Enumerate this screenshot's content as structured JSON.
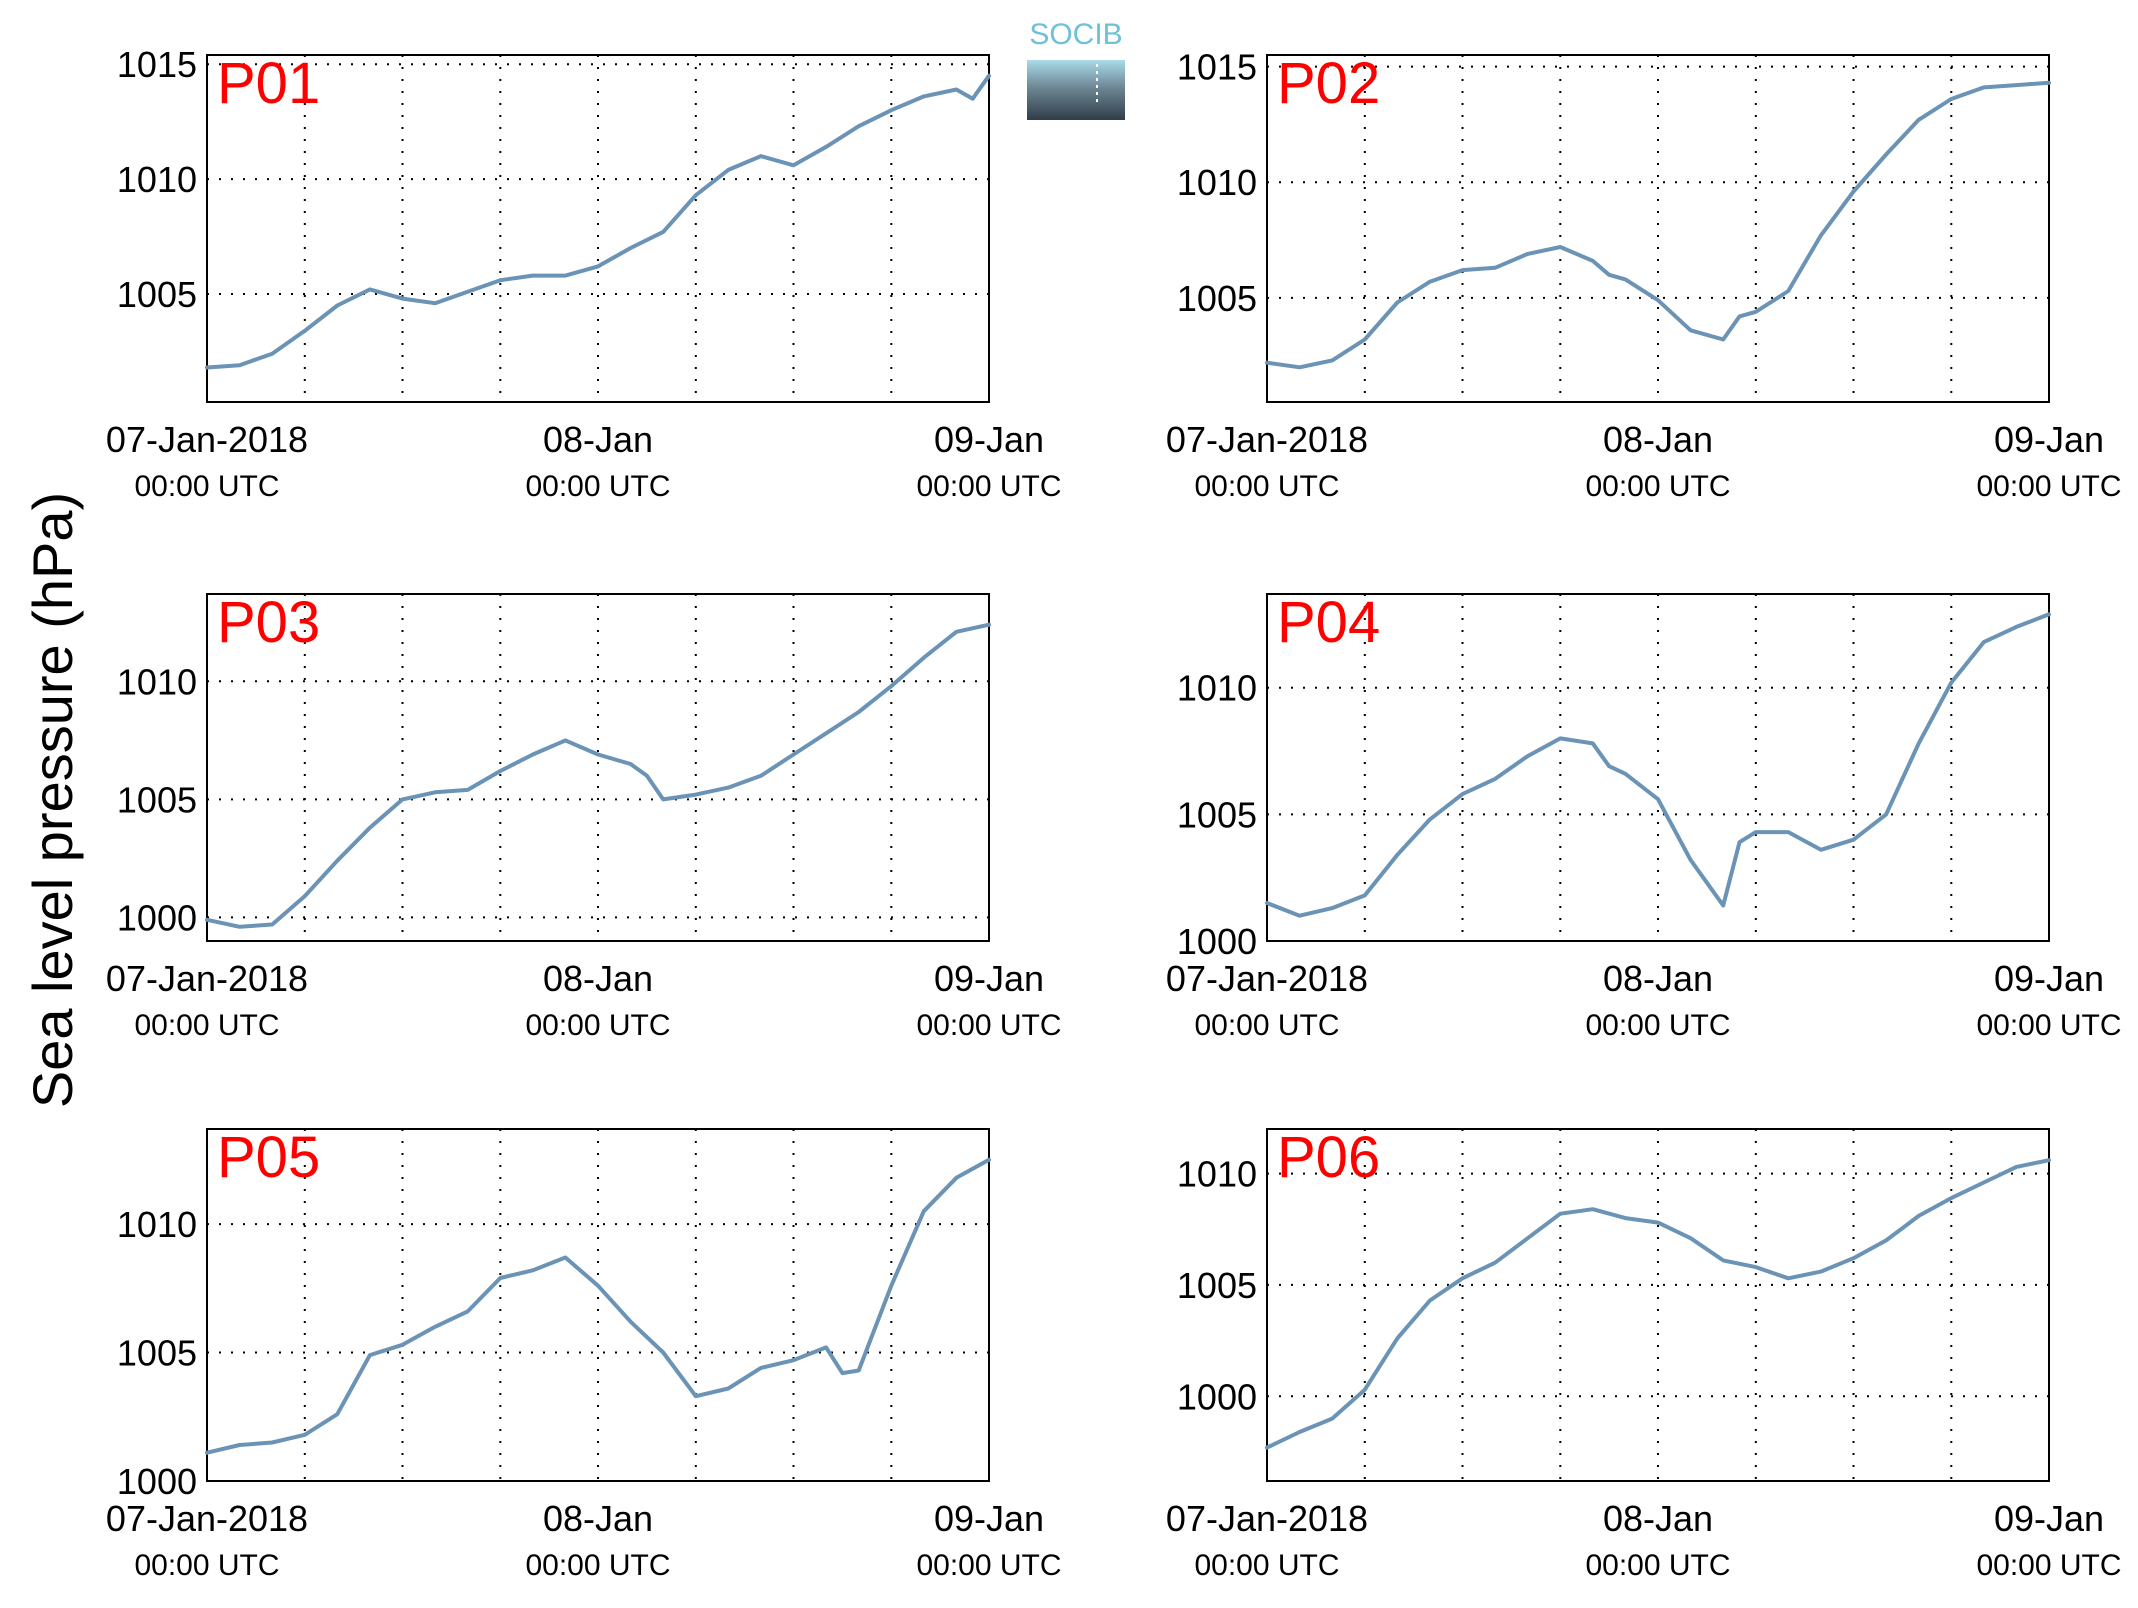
{
  "figure": {
    "ylabel": "Sea level pressure (hPa)",
    "logo_text": "SOCIB"
  },
  "colors": {
    "series": "#6a93b6",
    "panel_label": "#ff0000",
    "logo_top": "#6ec1d6",
    "logo_bottom": "#2f3e49"
  },
  "chart_data": [
    {
      "type": "line",
      "name": "P01",
      "grid": true,
      "x_ticks": [
        {
          "top": "07-Jan-2018",
          "bottom": "00:00 UTC"
        },
        {
          "top": "08-Jan",
          "bottom": "00:00 UTC"
        },
        {
          "top": "09-Jan",
          "bottom": "00:00 UTC"
        }
      ],
      "xlim_hours": [
        0,
        48
      ],
      "ylim": [
        1000.3,
        1015.4
      ],
      "y_ticks": [
        1005,
        1010,
        1015
      ],
      "x_hours": [
        0,
        2,
        4,
        6,
        8,
        10,
        12,
        14,
        16,
        18,
        20,
        22,
        24,
        26,
        28,
        30,
        32,
        34,
        36,
        38,
        40,
        42,
        44,
        46,
        47,
        48
      ],
      "values": [
        1001.8,
        1001.9,
        1002.4,
        1003.4,
        1004.5,
        1005.2,
        1004.8,
        1004.6,
        1005.1,
        1005.6,
        1005.8,
        1005.8,
        1006.2,
        1007.0,
        1007.7,
        1009.3,
        1010.4,
        1011.0,
        1010.6,
        1011.4,
        1012.3,
        1013.0,
        1013.6,
        1013.9,
        1013.5,
        1014.5
      ]
    },
    {
      "type": "line",
      "name": "P02",
      "grid": true,
      "x_ticks": [
        {
          "top": "07-Jan-2018",
          "bottom": "00:00 UTC"
        },
        {
          "top": "08-Jan",
          "bottom": "00:00 UTC"
        },
        {
          "top": "09-Jan",
          "bottom": "00:00 UTC"
        }
      ],
      "xlim_hours": [
        0,
        48
      ],
      "ylim": [
        1000.5,
        1015.5
      ],
      "y_ticks": [
        1005,
        1010,
        1015
      ],
      "x_hours": [
        0,
        2,
        4,
        6,
        8,
        10,
        12,
        14,
        16,
        18,
        20,
        21,
        22,
        24,
        26,
        28,
        29,
        30,
        32,
        34,
        36,
        38,
        40,
        42,
        44,
        46,
        48
      ],
      "values": [
        1002.2,
        1002.0,
        1002.3,
        1003.2,
        1004.8,
        1005.7,
        1006.2,
        1006.3,
        1006.9,
        1007.2,
        1006.6,
        1006.0,
        1005.8,
        1004.9,
        1003.6,
        1003.2,
        1004.2,
        1004.4,
        1005.3,
        1007.7,
        1009.6,
        1011.2,
        1012.7,
        1013.6,
        1014.1,
        1014.2,
        1014.3
      ]
    },
    {
      "type": "line",
      "name": "P03",
      "grid": true,
      "x_ticks": [
        {
          "top": "07-Jan-2018",
          "bottom": "00:00 UTC"
        },
        {
          "top": "08-Jan",
          "bottom": "00:00 UTC"
        },
        {
          "top": "09-Jan",
          "bottom": "00:00 UTC"
        }
      ],
      "xlim_hours": [
        0,
        48
      ],
      "ylim": [
        999.0,
        1013.7
      ],
      "y_ticks": [
        1000,
        1005,
        1010
      ],
      "x_hours": [
        0,
        2,
        4,
        6,
        8,
        10,
        12,
        14,
        16,
        18,
        20,
        22,
        24,
        26,
        27,
        28,
        30,
        32,
        34,
        36,
        38,
        40,
        42,
        44,
        46,
        48
      ],
      "values": [
        999.9,
        999.6,
        999.7,
        1000.9,
        1002.4,
        1003.8,
        1005.0,
        1005.3,
        1005.4,
        1006.2,
        1006.9,
        1007.5,
        1006.9,
        1006.5,
        1006.0,
        1005.0,
        1005.2,
        1005.5,
        1006.0,
        1006.9,
        1007.8,
        1008.7,
        1009.8,
        1011.0,
        1012.1,
        1012.4
      ]
    },
    {
      "type": "line",
      "name": "P04",
      "grid": true,
      "x_ticks": [
        {
          "top": "07-Jan-2018",
          "bottom": "00:00 UTC"
        },
        {
          "top": "08-Jan",
          "bottom": "00:00 UTC"
        },
        {
          "top": "09-Jan",
          "bottom": "00:00 UTC"
        }
      ],
      "xlim_hours": [
        0,
        48
      ],
      "ylim": [
        1000,
        1013.7
      ],
      "y_ticks": [
        1000,
        1005,
        1010
      ],
      "x_hours": [
        0,
        2,
        4,
        6,
        8,
        10,
        12,
        14,
        16,
        18,
        20,
        21,
        22,
        24,
        26,
        28,
        29,
        30,
        32,
        34,
        36,
        38,
        40,
        42,
        44,
        46,
        48
      ],
      "values": [
        1001.5,
        1001.0,
        1001.3,
        1001.8,
        1003.4,
        1004.8,
        1005.8,
        1006.4,
        1007.3,
        1008.0,
        1007.8,
        1006.9,
        1006.6,
        1005.6,
        1003.2,
        1001.4,
        1003.9,
        1004.3,
        1004.3,
        1003.6,
        1004.0,
        1005.0,
        1007.8,
        1010.2,
        1011.8,
        1012.4,
        1012.9
      ]
    },
    {
      "type": "line",
      "name": "P05",
      "grid": true,
      "x_ticks": [
        {
          "top": "07-Jan-2018",
          "bottom": "00:00 UTC"
        },
        {
          "top": "08-Jan",
          "bottom": "00:00 UTC"
        },
        {
          "top": "09-Jan",
          "bottom": "00:00 UTC"
        }
      ],
      "xlim_hours": [
        0,
        48
      ],
      "ylim": [
        1000,
        1013.7
      ],
      "y_ticks": [
        1000,
        1005,
        1010
      ],
      "x_hours": [
        0,
        2,
        4,
        6,
        8,
        10,
        12,
        14,
        16,
        18,
        20,
        22,
        24,
        26,
        28,
        30,
        32,
        34,
        36,
        38,
        39,
        40,
        42,
        44,
        46,
        48
      ],
      "values": [
        1001.1,
        1001.4,
        1001.5,
        1001.8,
        1002.6,
        1004.9,
        1005.3,
        1006.0,
        1006.6,
        1007.9,
        1008.2,
        1008.7,
        1007.6,
        1006.2,
        1005.0,
        1003.3,
        1003.6,
        1004.4,
        1004.7,
        1005.2,
        1004.2,
        1004.3,
        1007.6,
        1010.5,
        1011.8,
        1012.5
      ]
    },
    {
      "type": "line",
      "name": "P06",
      "grid": true,
      "x_ticks": [
        {
          "top": "07-Jan-2018",
          "bottom": "00:00 UTC"
        },
        {
          "top": "08-Jan",
          "bottom": "00:00 UTC"
        },
        {
          "top": "09-Jan",
          "bottom": "00:00 UTC"
        }
      ],
      "xlim_hours": [
        0,
        48
      ],
      "ylim": [
        996.2,
        1012
      ],
      "y_ticks": [
        1000,
        1005,
        1010
      ],
      "x_hours": [
        0,
        2,
        4,
        6,
        8,
        10,
        12,
        14,
        16,
        18,
        20,
        22,
        24,
        26,
        28,
        30,
        32,
        34,
        36,
        38,
        40,
        42,
        44,
        46,
        48
      ],
      "values": [
        997.7,
        998.4,
        999.0,
        1000.3,
        1002.6,
        1004.3,
        1005.3,
        1006.0,
        1007.1,
        1008.2,
        1008.4,
        1008.0,
        1007.8,
        1007.1,
        1006.1,
        1005.8,
        1005.3,
        1005.6,
        1006.2,
        1007.0,
        1008.1,
        1008.9,
        1009.6,
        1010.3,
        1010.6
      ]
    }
  ]
}
